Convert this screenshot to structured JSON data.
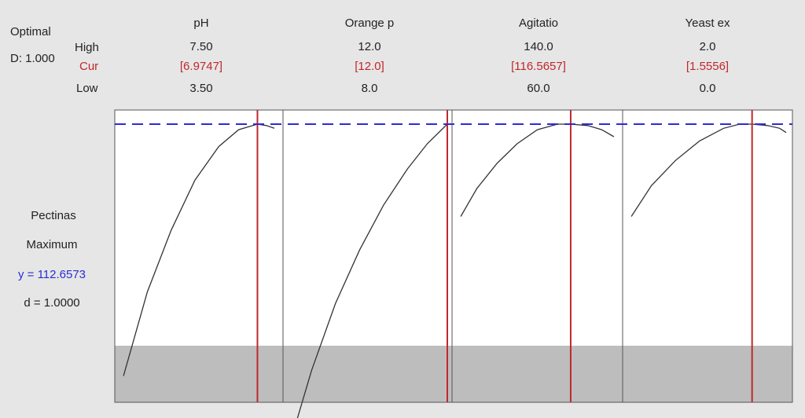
{
  "header": {
    "optimal_label": "Optimal",
    "d_label": "D: 1.000",
    "row_high": "High",
    "row_cur": "Cur",
    "row_low": "Low"
  },
  "response": {
    "name": "Pectinas",
    "goal": "Maximum",
    "y_text": "y = 112.6573",
    "d_text": "d = 1.0000"
  },
  "colors": {
    "current_line": "#c0282c",
    "target_dash": "#2b2bd6",
    "infeasible_band": "#bdbdbd",
    "curve": "#333333"
  },
  "chart_data": {
    "type": "line",
    "title": "",
    "y_optimum": 112.6573,
    "factors": [
      {
        "name": "pH",
        "high": "7.50",
        "cur": "[6.9747]",
        "low": "3.50",
        "x_range": [
          3.5,
          7.5
        ],
        "cur_value": 6.9747,
        "curve": [
          [
            3.6,
            0.1
          ],
          [
            4.2,
            0.4
          ],
          [
            4.8,
            0.62
          ],
          [
            5.4,
            0.8
          ],
          [
            6.0,
            0.92
          ],
          [
            6.5,
            0.98
          ],
          [
            6.9747,
            1.0
          ],
          [
            7.2,
            0.995
          ],
          [
            7.4,
            0.985
          ]
        ]
      },
      {
        "name": "Orange p",
        "high": "12.0",
        "cur": "[12.0]",
        "low": "8.0",
        "x_range": [
          8.0,
          12.0
        ],
        "cur_value": 12.0,
        "curve": [
          [
            8.1,
            -0.12
          ],
          [
            8.6,
            0.12
          ],
          [
            9.2,
            0.36
          ],
          [
            9.8,
            0.55
          ],
          [
            10.4,
            0.71
          ],
          [
            11.0,
            0.84
          ],
          [
            11.5,
            0.93
          ],
          [
            12.0,
            1.0
          ]
        ]
      },
      {
        "name": "Agitatio",
        "high": "140.0",
        "cur": "[116.5657]",
        "low": "60.0",
        "x_range": [
          60.0,
          140.0
        ],
        "cur_value": 116.5657,
        "curve": [
          [
            62,
            0.67
          ],
          [
            70,
            0.77
          ],
          [
            80,
            0.86
          ],
          [
            90,
            0.93
          ],
          [
            100,
            0.98
          ],
          [
            110,
            1.0
          ],
          [
            116.5657,
            1.0
          ],
          [
            125,
            0.995
          ],
          [
            132,
            0.98
          ],
          [
            138,
            0.955
          ]
        ]
      },
      {
        "name": "Yeast ex",
        "high": "2.0",
        "cur": "[1.5556]",
        "low": "0.0",
        "x_range": [
          0.0,
          2.0
        ],
        "cur_value": 1.5556,
        "curve": [
          [
            0.05,
            0.67
          ],
          [
            0.3,
            0.78
          ],
          [
            0.6,
            0.87
          ],
          [
            0.9,
            0.94
          ],
          [
            1.2,
            0.985
          ],
          [
            1.4,
            1.0
          ],
          [
            1.5556,
            1.0
          ],
          [
            1.75,
            0.995
          ],
          [
            1.9,
            0.985
          ],
          [
            1.98,
            0.97
          ]
        ]
      }
    ]
  }
}
